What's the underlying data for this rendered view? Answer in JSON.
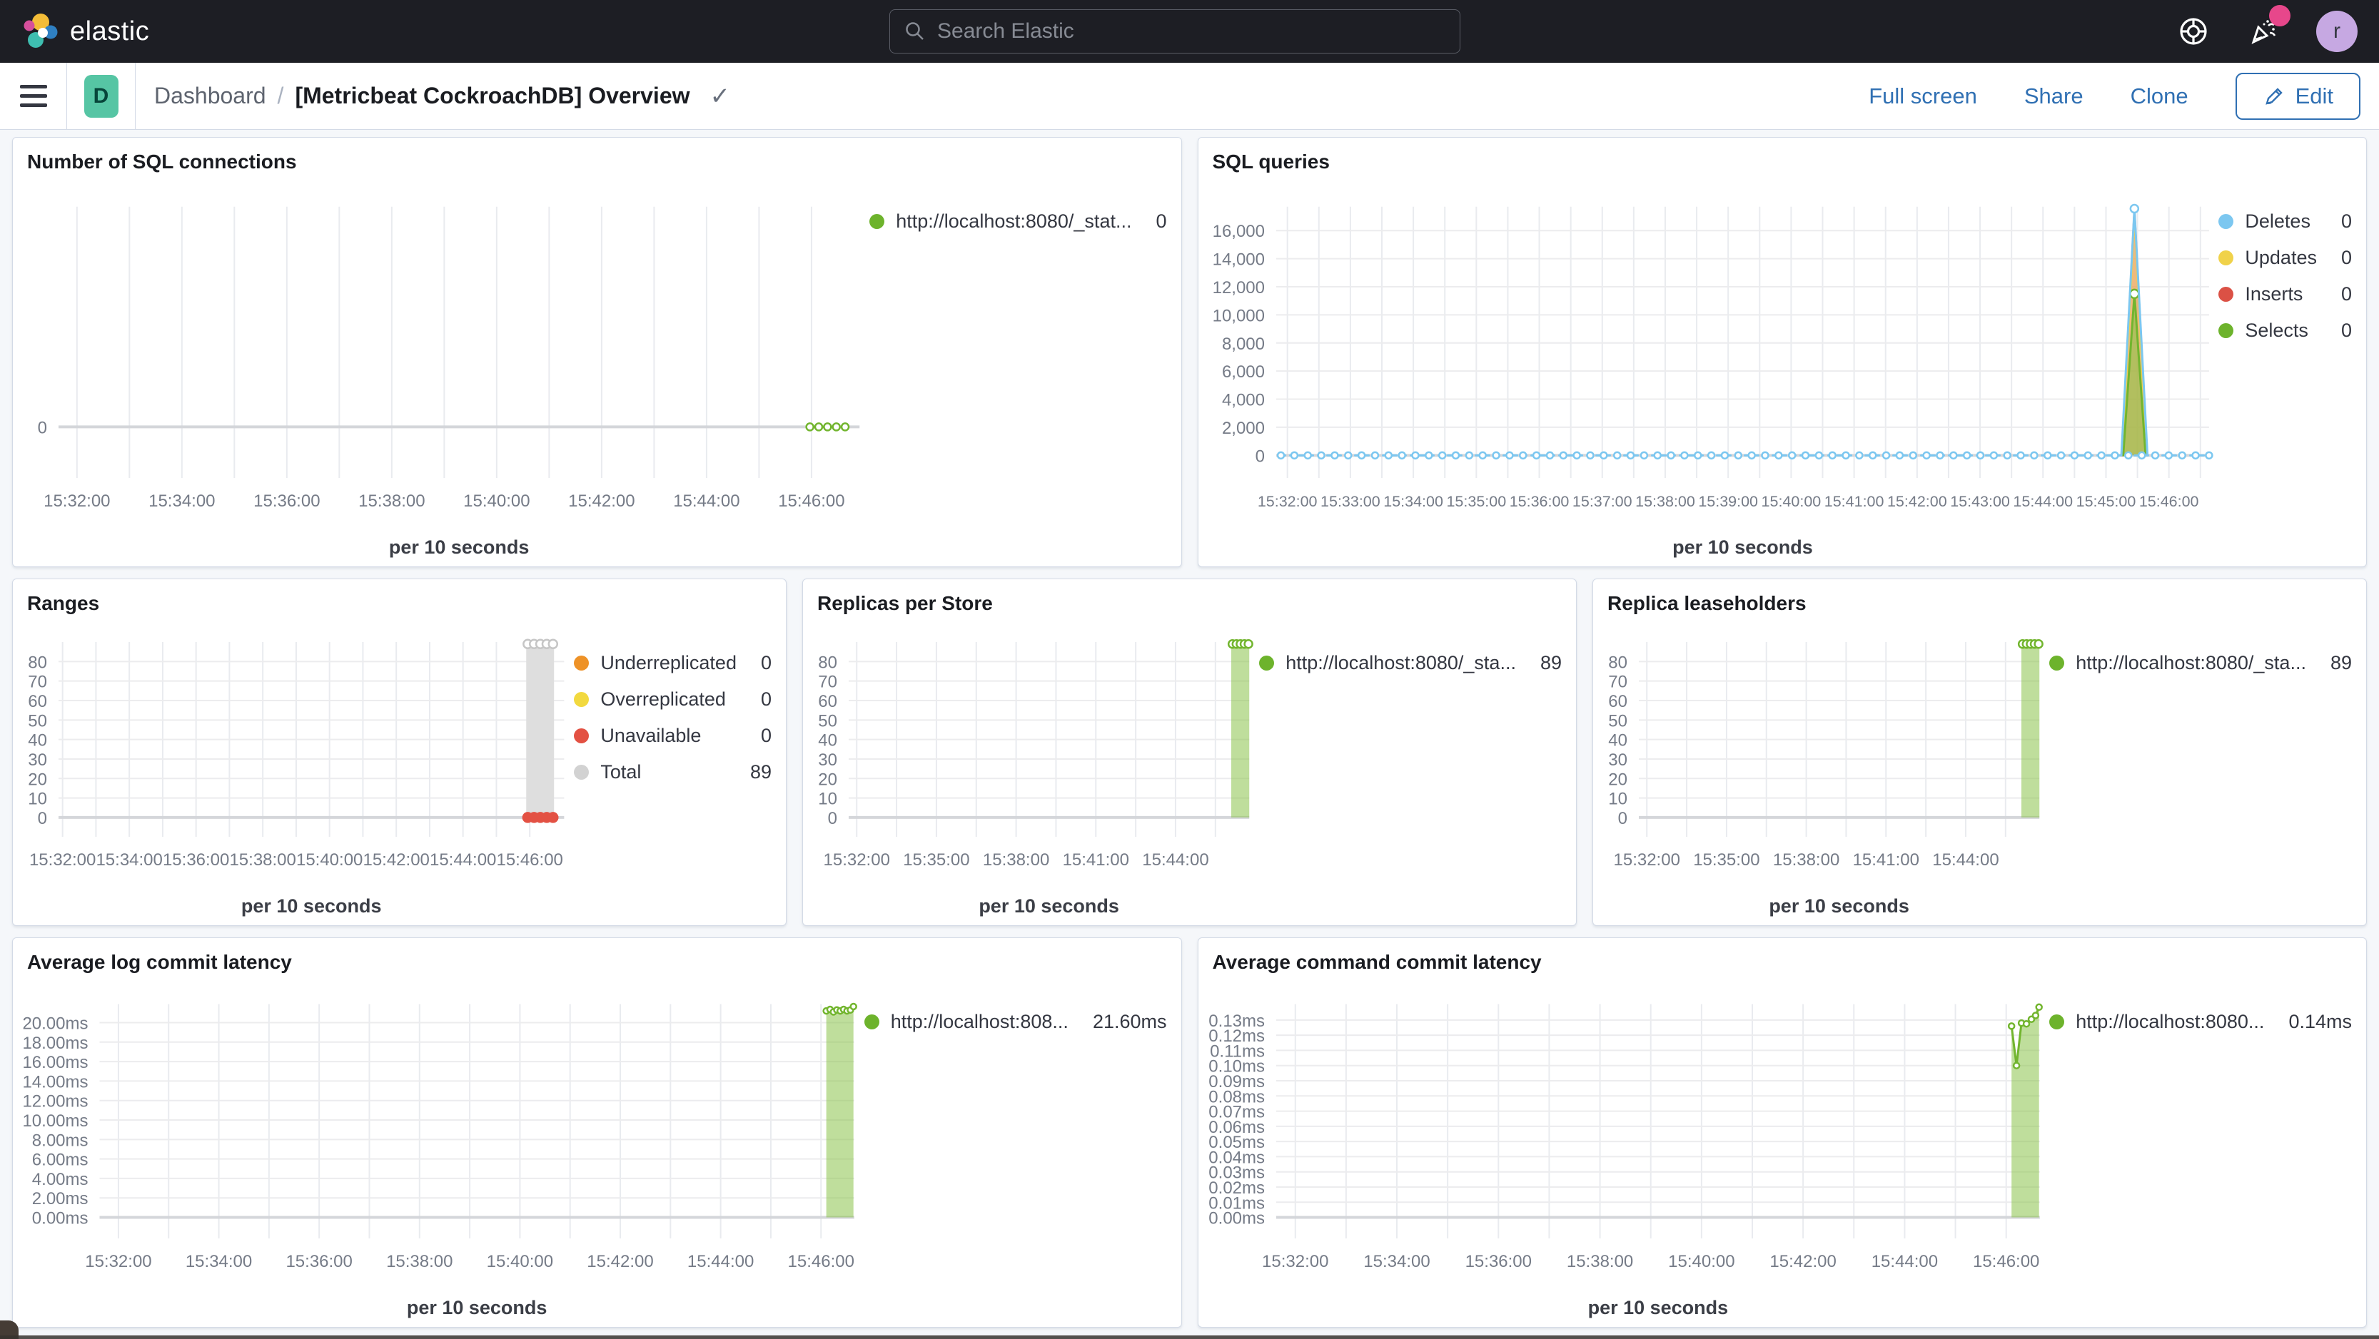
{
  "topbar": {
    "brand": "elastic",
    "search_placeholder": "Search Elastic",
    "user_initial": "r"
  },
  "toolbar": {
    "menu_badge": "D",
    "breadcrumb_parent": "Dashboard",
    "breadcrumb_separator": "/",
    "title": "[Metricbeat CockroachDB] Overview",
    "actions": {
      "full_screen": "Full screen",
      "share": "Share",
      "clone": "Clone",
      "edit": "Edit"
    }
  },
  "colors": {
    "header_bg": "#1d1e24",
    "accent_blue": "#3070b3",
    "badge_teal": "#56c5a4",
    "avatar_purple": "#c6a8e2",
    "notification_pink": "#e7478b",
    "series_green": "#72b52e",
    "series_blue": "#7cc7f0",
    "series_yellow": "#f0d24a",
    "series_red": "#db5145",
    "series_orange": "#ee9227",
    "series_gray": "#d2d2d2"
  },
  "panels": [
    {
      "title": "Number of SQL connections",
      "legend": [
        {
          "color": "#6db32c",
          "label": "http://localhost:8080/_stat...",
          "value": "0"
        }
      ],
      "chart_data": {
        "type": "line",
        "title": "Number of SQL connections",
        "xlabel": "per 10 seconds",
        "ylabel": "",
        "y_ticks": [
          "0"
        ],
        "ymax": 1,
        "below": 0.18,
        "x_ticks": [
          "15:32:00",
          "15:34:00",
          "15:36:00",
          "15:38:00",
          "15:40:00",
          "15:42:00",
          "15:44:00",
          "15:46:00"
        ],
        "x_start": 0.023,
        "x_step": 0.131,
        "series": [
          {
            "name": "http://localhost:8080/_stat...",
            "color": "#72b52e",
            "w": 3,
            "dash": [
              7,
              9
            ],
            "markers": true,
            "mr": 5,
            "points": [
              [
                0.938,
                0
              ],
              [
                0.949,
                0
              ],
              [
                0.96,
                0
              ],
              [
                0.971,
                0
              ],
              [
                0.982,
                0
              ]
            ]
          }
        ]
      }
    },
    {
      "title": "SQL queries",
      "legend": [
        {
          "color": "#7cc7f0",
          "label": "Deletes",
          "value": "0"
        },
        {
          "color": "#f0d24a",
          "label": "Updates",
          "value": "0"
        },
        {
          "color": "#db5145",
          "label": "Inserts",
          "value": "0"
        },
        {
          "color": "#6db32c",
          "label": "Selects",
          "value": "0"
        }
      ],
      "chart_data": {
        "type": "area",
        "title": "SQL queries",
        "xlabel": "per 10 seconds",
        "ylabel": "",
        "y_ticks": [
          "0",
          "2,000",
          "4,000",
          "6,000",
          "8,000",
          "10,000",
          "12,000",
          "14,000",
          "16,000"
        ],
        "ymax": 17700,
        "x_ticks": [
          "15:32:00",
          "15:33:00",
          "15:34:00",
          "15:35:00",
          "15:36:00",
          "15:37:00",
          "15:38:00",
          "15:39:00",
          "15:40:00",
          "15:41:00",
          "15:42:00",
          "15:43:00",
          "15:44:00",
          "15:45:00",
          "15:46:00"
        ],
        "x_start": 0.012,
        "x_step": 0.0675,
        "xfont": 21.5,
        "series": [
          {
            "name": "Inserts",
            "color": "#db5145",
            "fill": "rgba(219,81,69,0.5)",
            "w": 3,
            "points": [
              [
                0.9065,
                0
              ],
              [
                0.92,
                17400
              ],
              [
                0.9335,
                0
              ]
            ]
          },
          {
            "name": "Updates",
            "color": "#f0d24a",
            "fill": "rgba(240,210,74,0.4)",
            "w": 2,
            "points": [
              [
                0.9075,
                0
              ],
              [
                0.92,
                16800
              ],
              [
                0.9325,
                0
              ]
            ]
          },
          {
            "name": "Selects",
            "color": "#72b52e",
            "fill": "rgba(139,195,74,0.6)",
            "w": 3,
            "points": [
              [
                0.908,
                0
              ],
              [
                0.92,
                11500
              ],
              [
                0.932,
                0
              ]
            ],
            "markers": [
              [
                0.92,
                11500
              ]
            ],
            "mr": 6
          },
          {
            "name": "Deletes",
            "color": "#7cc7f0",
            "w": 3,
            "dash": [
              6,
              7
            ],
            "flat": {
              "x0": 0.005,
              "x1": 1.0,
              "y": 0,
              "n": 70
            },
            "markers": true,
            "mr": 4.5
          },
          {
            "name": "Deletes spike",
            "color": "#7cc7f0",
            "w": 3,
            "points": [
              [
                0.906,
                0
              ],
              [
                0.92,
                17560
              ],
              [
                0.934,
                0
              ]
            ],
            "markers": [
              [
                0.92,
                17560
              ]
            ],
            "mr": 5.5
          }
        ]
      }
    },
    {
      "title": "Ranges",
      "legend": [
        {
          "color": "#ee9227",
          "label": "Underreplicated",
          "value": "0"
        },
        {
          "color": "#f2d93f",
          "label": "Overreplicated",
          "value": "0"
        },
        {
          "color": "#e35143",
          "label": "Unavailable",
          "value": "0"
        },
        {
          "color": "#d2d2d2",
          "label": "Total",
          "value": "89"
        }
      ],
      "chart_data": {
        "type": "bar",
        "title": "Ranges",
        "xlabel": "per 10 seconds",
        "ylabel": "",
        "y_ticks": [
          "0",
          "10",
          "20",
          "30",
          "40",
          "50",
          "60",
          "70",
          "80"
        ],
        "ymax": 90,
        "x_ticks": [
          "15:32:00",
          "15:34:00",
          "15:36:00",
          "15:38:00",
          "15:40:00",
          "15:42:00",
          "15:44:00",
          "15:46:00"
        ],
        "x_start": 0.008,
        "x_step": 0.132,
        "series": [
          {
            "name": "Total",
            "color": "#c6c6c6",
            "fill": "#dedede",
            "line": false,
            "points": [
              [
                0.925,
                89
              ],
              [
                0.98,
                89
              ]
            ],
            "markers": [
              [
                0.928,
                89
              ],
              [
                0.9405,
                89
              ],
              [
                0.953,
                89
              ],
              [
                0.9655,
                89
              ],
              [
                0.978,
                89
              ]
            ],
            "mr": 6
          },
          {
            "name": "Unavailable",
            "color": "#e35143",
            "line": false,
            "mfill": true,
            "markers": [
              [
                0.928,
                0
              ],
              [
                0.9405,
                0
              ],
              [
                0.953,
                0
              ],
              [
                0.9655,
                0
              ],
              [
                0.978,
                0
              ]
            ],
            "points": [
              [
                0.928,
                0
              ],
              [
                0.978,
                0
              ]
            ],
            "mr": 6.5
          }
        ]
      }
    },
    {
      "title": "Replicas per Store",
      "legend": [
        {
          "color": "#6db32c",
          "label": "http://localhost:8080/_sta...",
          "value": "89"
        }
      ],
      "chart_data": {
        "type": "bar",
        "title": "Replicas per Store",
        "xlabel": "per 10 seconds",
        "ylabel": "",
        "y_ticks": [
          "0",
          "10",
          "20",
          "30",
          "40",
          "50",
          "60",
          "70",
          "80"
        ],
        "ymax": 90,
        "x_ticks": [
          "15:32:00",
          "15:35:00",
          "15:38:00",
          "15:41:00",
          "15:44:00"
        ],
        "x_start": 0.02,
        "x_step": 0.199,
        "series": [
          {
            "name": "http://localhost:8080/_sta...",
            "color": "#72b52e",
            "fill": "rgba(139,195,74,0.55)",
            "w": 2.5,
            "points": [
              [
                0.955,
                89
              ],
              [
                1.0,
                89
              ]
            ],
            "markers": [
              [
                0.958,
                89
              ],
              [
                0.968,
                89
              ],
              [
                0.978,
                89
              ],
              [
                0.988,
                89
              ],
              [
                0.998,
                89
              ]
            ],
            "mr": 5.5
          }
        ]
      }
    },
    {
      "title": "Replica leaseholders",
      "legend": [
        {
          "color": "#6db32c",
          "label": "http://localhost:8080/_sta...",
          "value": "89"
        }
      ],
      "chart_data": {
        "type": "bar",
        "title": "Replica leaseholders",
        "xlabel": "per 10 seconds",
        "ylabel": "",
        "y_ticks": [
          "0",
          "10",
          "20",
          "30",
          "40",
          "50",
          "60",
          "70",
          "80"
        ],
        "ymax": 90,
        "x_ticks": [
          "15:32:00",
          "15:35:00",
          "15:38:00",
          "15:41:00",
          "15:44:00"
        ],
        "x_start": 0.02,
        "x_step": 0.199,
        "series": [
          {
            "name": "http://localhost:8080/_sta...",
            "color": "#72b52e",
            "fill": "rgba(139,195,74,0.55)",
            "w": 2.5,
            "points": [
              [
                0.955,
                89
              ],
              [
                1.0,
                89
              ]
            ],
            "markers": [
              [
                0.958,
                89
              ],
              [
                0.968,
                89
              ],
              [
                0.978,
                89
              ],
              [
                0.988,
                89
              ],
              [
                0.998,
                89
              ]
            ],
            "mr": 5.5
          }
        ]
      }
    },
    {
      "title": "Average log commit latency",
      "legend": [
        {
          "color": "#6db32c",
          "label": "http://localhost:808...",
          "value": "21.60ms"
        }
      ],
      "chart_data": {
        "type": "area",
        "title": "Average log commit latency",
        "xlabel": "per 10 seconds",
        "ylabel": "",
        "y_ticks": [
          "0.00ms",
          "2.00ms",
          "4.00ms",
          "6.00ms",
          "8.00ms",
          "10.00ms",
          "12.00ms",
          "14.00ms",
          "16.00ms",
          "18.00ms",
          "20.00ms"
        ],
        "ymax": 21.9,
        "x_ticks": [
          "15:32:00",
          "15:34:00",
          "15:36:00",
          "15:38:00",
          "15:40:00",
          "15:42:00",
          "15:44:00",
          "15:46:00"
        ],
        "x_start": 0.025,
        "x_step": 0.133,
        "series": [
          {
            "name": "http://localhost:808...",
            "color": "#72b52e",
            "fill": "rgba(139,195,74,0.55)",
            "w": 3,
            "markers": true,
            "mr": 4,
            "points": [
              [
                0.963,
                21.2
              ],
              [
                0.968,
                21.35
              ],
              [
                0.9725,
                21.1
              ],
              [
                0.977,
                21.3
              ],
              [
                0.9815,
                21.2
              ],
              [
                0.986,
                21.35
              ],
              [
                0.9905,
                21.2
              ],
              [
                0.995,
                21.3
              ],
              [
                0.999,
                21.65
              ]
            ]
          }
        ]
      }
    },
    {
      "title": "Average command commit latency",
      "legend": [
        {
          "color": "#6db32c",
          "label": "http://localhost:8080...",
          "value": "0.14ms"
        }
      ],
      "chart_data": {
        "type": "area",
        "title": "Average command commit latency",
        "xlabel": "per 10 seconds",
        "ylabel": "",
        "y_ticks": [
          "0.00ms",
          "0.01ms",
          "0.02ms",
          "0.03ms",
          "0.04ms",
          "0.05ms",
          "0.06ms",
          "0.07ms",
          "0.08ms",
          "0.09ms",
          "0.10ms",
          "0.11ms",
          "0.12ms",
          "0.13ms"
        ],
        "ymax": 0.1405,
        "x_ticks": [
          "15:32:00",
          "15:34:00",
          "15:36:00",
          "15:38:00",
          "15:40:00",
          "15:42:00",
          "15:44:00",
          "15:46:00"
        ],
        "x_start": 0.025,
        "x_step": 0.133,
        "series": [
          {
            "name": "http://localhost:8080...",
            "color": "#72b52e",
            "fill": "rgba(139,195,74,0.55)",
            "w": 3,
            "markers": true,
            "mr": 4,
            "points": [
              [
                0.963,
                0.126
              ],
              [
                0.9695,
                0.1
              ],
              [
                0.976,
                0.128
              ],
              [
                0.9825,
                0.1275
              ],
              [
                0.989,
                0.1305
              ],
              [
                0.9945,
                0.133
              ],
              [
                0.999,
                0.1385
              ]
            ]
          }
        ]
      }
    }
  ]
}
